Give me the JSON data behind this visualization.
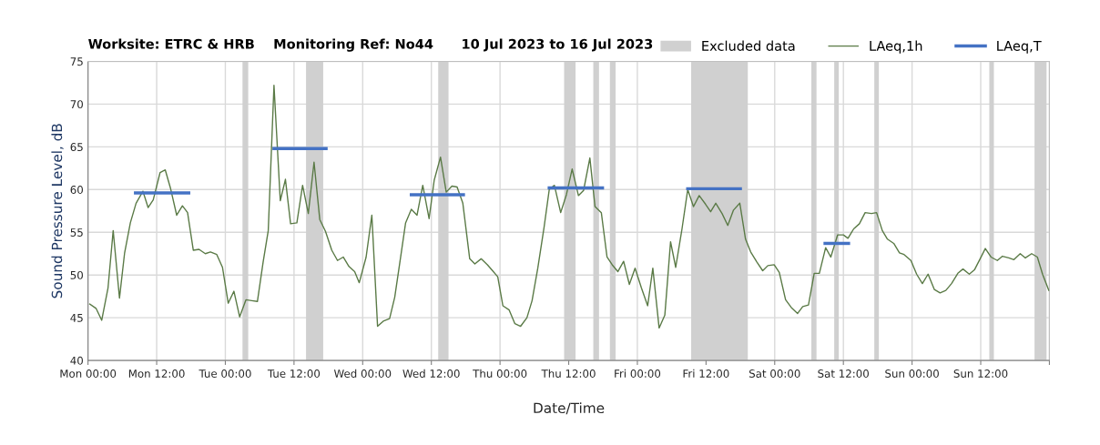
{
  "chart_data": {
    "type": "line",
    "title": "Worksite: ETRC & HRB    Monitoring Ref: No44      10 Jul 2023 to 16 Jul 2023",
    "xlabel": "Date/Time",
    "ylabel": "Sound Pressure Level, dB",
    "xlim": [
      "2023-07-10T00:00",
      "2023-07-17T00:00"
    ],
    "xticks": [
      {
        "value": "2023-07-10T00:00",
        "label": "Mon 00:00"
      },
      {
        "value": "2023-07-10T12:00",
        "label": "Mon 12:00"
      },
      {
        "value": "2023-07-11T00:00",
        "label": "Tue 00:00"
      },
      {
        "value": "2023-07-11T12:00",
        "label": "Tue 12:00"
      },
      {
        "value": "2023-07-12T00:00",
        "label": "Wed 00:00"
      },
      {
        "value": "2023-07-12T12:00",
        "label": "Wed 12:00"
      },
      {
        "value": "2023-07-13T00:00",
        "label": "Thu 00:00"
      },
      {
        "value": "2023-07-13T12:00",
        "label": "Thu 12:00"
      },
      {
        "value": "2023-07-14T00:00",
        "label": "Fri 00:00"
      },
      {
        "value": "2023-07-14T12:00",
        "label": "Fri 12:00"
      },
      {
        "value": "2023-07-15T00:00",
        "label": "Sat 00:00"
      },
      {
        "value": "2023-07-15T12:00",
        "label": "Sat 12:00"
      },
      {
        "value": "2023-07-16T00:00",
        "label": "Sun 00:00"
      },
      {
        "value": "2023-07-16T12:00",
        "label": "Sun 12:00"
      },
      {
        "value": "2023-07-17T00:00",
        "label": null
      }
    ],
    "ylim": [
      40,
      75
    ],
    "yticks": [
      40,
      45,
      50,
      55,
      60,
      65,
      70,
      75
    ],
    "grid": true,
    "legend": "top right",
    "series": [
      {
        "name": "LAeq,1h",
        "color": "#5a7a46",
        "x": [
          "2023-07-10T00:18",
          "2023-07-10T01:24",
          "2023-07-10T02:24",
          "2023-07-10T03:30",
          "2023-07-10T04:24",
          "2023-07-10T05:30",
          "2023-07-10T06:24",
          "2023-07-10T07:24",
          "2023-07-10T08:24",
          "2023-07-10T09:36",
          "2023-07-10T10:30",
          "2023-07-10T11:24",
          "2023-07-10T12:36",
          "2023-07-10T13:30",
          "2023-07-10T14:24",
          "2023-07-10T15:30",
          "2023-07-10T16:30",
          "2023-07-10T17:24",
          "2023-07-10T18:24",
          "2023-07-10T19:24",
          "2023-07-10T20:30",
          "2023-07-10T21:24",
          "2023-07-10T22:30",
          "2023-07-10T23:30",
          "2023-07-11T00:30",
          "2023-07-11T01:30",
          "2023-07-11T02:30",
          "2023-07-11T03:36",
          "2023-07-11T04:36",
          "2023-07-11T05:36",
          "2023-07-11T06:36",
          "2023-07-11T07:30",
          "2023-07-11T08:30",
          "2023-07-11T09:36",
          "2023-07-11T10:30",
          "2023-07-11T11:24",
          "2023-07-11T12:30",
          "2023-07-11T13:30",
          "2023-07-11T14:30",
          "2023-07-11T15:30",
          "2023-07-11T16:30",
          "2023-07-11T17:30",
          "2023-07-11T18:36",
          "2023-07-11T19:36",
          "2023-07-11T20:36",
          "2023-07-11T21:36",
          "2023-07-11T22:36",
          "2023-07-11T23:24",
          "2023-07-12T00:36",
          "2023-07-12T01:36",
          "2023-07-12T02:36",
          "2023-07-12T03:36",
          "2023-07-12T04:42",
          "2023-07-12T05:36",
          "2023-07-12T06:30",
          "2023-07-12T07:30",
          "2023-07-12T08:30",
          "2023-07-12T09:30",
          "2023-07-12T10:30",
          "2023-07-12T11:36",
          "2023-07-12T12:30",
          "2023-07-12T13:36",
          "2023-07-12T14:36",
          "2023-07-12T15:36",
          "2023-07-12T16:30",
          "2023-07-12T17:30",
          "2023-07-12T18:42",
          "2023-07-12T19:36",
          "2023-07-12T20:42",
          "2023-07-12T21:48",
          "2023-07-12T22:42",
          "2023-07-12T23:36",
          "2023-07-13T00:30",
          "2023-07-13T01:36",
          "2023-07-13T02:36",
          "2023-07-13T03:36",
          "2023-07-13T04:42",
          "2023-07-13T05:36",
          "2023-07-13T06:36",
          "2023-07-13T07:42",
          "2023-07-13T08:36",
          "2023-07-13T09:30",
          "2023-07-13T10:36",
          "2023-07-13T11:36",
          "2023-07-13T12:36",
          "2023-07-13T13:42",
          "2023-07-13T14:36",
          "2023-07-13T15:42",
          "2023-07-13T16:36",
          "2023-07-13T17:42",
          "2023-07-13T18:42",
          "2023-07-13T19:36",
          "2023-07-13T20:36",
          "2023-07-13T21:36",
          "2023-07-13T22:36",
          "2023-07-13T23:36",
          "2023-07-14T00:42",
          "2023-07-14T01:48",
          "2023-07-14T02:42",
          "2023-07-14T03:48",
          "2023-07-14T04:48",
          "2023-07-14T05:48",
          "2023-07-14T06:42",
          "2023-07-14T07:48",
          "2023-07-14T08:48",
          "2023-07-14T09:48",
          "2023-07-14T10:48",
          "2023-07-14T11:54",
          "2023-07-14T12:48",
          "2023-07-14T13:42",
          "2023-07-14T14:48",
          "2023-07-14T15:48",
          "2023-07-14T16:48",
          "2023-07-14T17:54",
          "2023-07-14T18:54",
          "2023-07-14T19:48",
          "2023-07-14T20:54",
          "2023-07-14T21:54",
          "2023-07-14T22:48",
          "2023-07-14T23:54",
          "2023-07-15T00:48",
          "2023-07-15T01:54",
          "2023-07-15T02:54",
          "2023-07-15T04:00",
          "2023-07-15T04:54",
          "2023-07-15T05:54",
          "2023-07-15T06:54",
          "2023-07-15T07:48",
          "2023-07-15T08:54",
          "2023-07-15T09:48",
          "2023-07-15T11:00",
          "2023-07-15T12:00",
          "2023-07-15T12:48",
          "2023-07-15T13:48",
          "2023-07-15T14:48",
          "2023-07-15T15:48",
          "2023-07-15T16:54",
          "2023-07-15T17:48",
          "2023-07-15T18:48",
          "2023-07-15T19:42",
          "2023-07-15T20:48",
          "2023-07-15T21:48",
          "2023-07-15T22:36",
          "2023-07-15T23:48",
          "2023-07-16T00:48",
          "2023-07-16T01:48",
          "2023-07-16T02:48",
          "2023-07-16T03:54",
          "2023-07-16T04:54",
          "2023-07-16T05:54",
          "2023-07-16T06:54",
          "2023-07-16T08:00",
          "2023-07-16T08:54",
          "2023-07-16T10:00",
          "2023-07-16T10:54",
          "2023-07-16T11:54",
          "2023-07-16T12:48",
          "2023-07-16T13:48",
          "2023-07-16T14:54",
          "2023-07-16T15:48",
          "2023-07-16T16:54",
          "2023-07-16T17:48",
          "2023-07-16T18:54",
          "2023-07-16T19:48",
          "2023-07-16T20:54",
          "2023-07-16T21:54",
          "2023-07-16T22:48",
          "2023-07-16T23:54"
        ],
        "values": [
          46.6,
          46.1,
          44.7,
          48.5,
          55.2,
          47.3,
          52.6,
          56.1,
          58.4,
          59.8,
          57.9,
          58.8,
          62.0,
          62.3,
          60.2,
          57.0,
          58.1,
          57.3,
          52.9,
          53.0,
          52.5,
          52.7,
          52.4,
          50.9,
          46.7,
          48.1,
          45.1,
          47.1,
          47.0,
          46.9,
          51.5,
          55.2,
          72.2,
          58.7,
          61.2,
          56.0,
          56.1,
          60.5,
          57.2,
          63.2,
          56.5,
          55.1,
          52.9,
          51.7,
          52.1,
          51.0,
          50.4,
          49.1,
          52.1,
          57.0,
          44.0,
          44.6,
          44.9,
          47.4,
          51.5,
          56.1,
          57.7,
          57.0,
          60.5,
          56.6,
          61.1,
          63.8,
          59.7,
          60.4,
          60.3,
          58.4,
          51.9,
          51.3,
          51.9,
          51.2,
          50.5,
          49.8,
          46.4,
          45.9,
          44.3,
          44.0,
          45.0,
          47.0,
          50.8,
          55.6,
          60.0,
          60.5,
          57.3,
          59.4,
          62.4,
          59.3,
          59.9,
          63.7,
          58.0,
          57.3,
          52.1,
          51.2,
          50.4,
          51.6,
          48.9,
          50.8,
          48.5,
          46.4,
          50.8,
          43.8,
          45.3,
          53.9,
          50.9,
          55.4,
          60.0,
          58.0,
          59.3,
          58.3,
          57.4,
          58.4,
          57.2,
          55.8,
          57.6,
          58.4,
          54.2,
          52.7,
          51.5,
          50.5,
          51.1,
          51.2,
          50.3,
          47.1,
          46.2,
          45.5,
          46.3,
          46.5,
          50.2,
          50.2,
          53.2,
          52.1,
          54.7,
          54.7,
          54.3,
          55.4,
          56.0,
          57.3,
          57.2,
          57.3,
          55.2,
          54.2,
          53.7,
          52.6,
          52.4,
          51.7,
          50.1,
          49.0,
          50.1,
          48.3,
          47.9,
          48.2,
          49.0,
          50.2,
          50.7,
          50.1,
          50.6,
          51.9,
          53.1,
          52.1,
          51.7,
          52.2,
          52.0,
          51.8,
          52.5,
          52.0,
          52.5,
          52.1,
          50.1,
          48.2
        ]
      },
      {
        "name": "LAeq,T",
        "color": "#4472c4",
        "x": [
          "2023-07-10T08:18",
          "2023-07-10T17:36"
        ],
        "values": [
          59.6,
          59.6
        ]
      },
      {
        "color": "#4472c4",
        "x": [
          "2023-07-11T08:30",
          "2023-07-11T17:36"
        ],
        "values": [
          64.8,
          64.8
        ]
      },
      {
        "color": "#4472c4",
        "x": [
          "2023-07-12T08:30",
          "2023-07-12T17:36"
        ],
        "values": [
          59.4,
          59.4
        ]
      },
      {
        "color": "#4472c4",
        "x": [
          "2023-07-13T08:36",
          "2023-07-13T17:54"
        ],
        "values": [
          60.2,
          60.2
        ]
      },
      {
        "color": "#4472c4",
        "x": [
          "2023-07-14T08:48",
          "2023-07-14T18:00"
        ],
        "values": [
          60.1,
          60.1
        ]
      },
      {
        "color": "#4472c4",
        "x": [
          "2023-07-15T08:48",
          "2023-07-15T12:54"
        ],
        "values": [
          53.7,
          53.7
        ]
      }
    ],
    "bands": [
      {
        "axis": "x",
        "from": "2023-07-11T03:00",
        "to": "2023-07-11T04:00",
        "label": "Excluded data",
        "color": "#d0d0d0"
      },
      {
        "axis": "x",
        "from": "2023-07-11T14:06",
        "to": "2023-07-11T17:06",
        "color": "#d0d0d0"
      },
      {
        "axis": "x",
        "from": "2023-07-12T13:12",
        "to": "2023-07-12T15:00",
        "color": "#d0d0d0"
      },
      {
        "axis": "x",
        "from": "2023-07-13T11:12",
        "to": "2023-07-13T13:12",
        "color": "#d0d0d0"
      },
      {
        "axis": "x",
        "from": "2023-07-13T16:18",
        "to": "2023-07-13T17:18",
        "color": "#d0d0d0"
      },
      {
        "axis": "x",
        "from": "2023-07-13T19:12",
        "to": "2023-07-13T20:12",
        "color": "#d0d0d0"
      },
      {
        "axis": "x",
        "from": "2023-07-14T09:24",
        "to": "2023-07-14T19:18",
        "color": "#d0d0d0"
      },
      {
        "axis": "x",
        "from": "2023-07-15T06:24",
        "to": "2023-07-15T07:18",
        "color": "#d0d0d0"
      },
      {
        "axis": "x",
        "from": "2023-07-15T10:24",
        "to": "2023-07-15T11:12",
        "color": "#d0d0d0"
      },
      {
        "axis": "x",
        "from": "2023-07-15T17:24",
        "to": "2023-07-15T18:12",
        "color": "#d0d0d0"
      },
      {
        "axis": "x",
        "from": "2023-07-16T13:30",
        "to": "2023-07-16T14:18",
        "color": "#d0d0d0"
      },
      {
        "axis": "x",
        "from": "2023-07-16T21:24",
        "to": "2023-07-16T23:30",
        "color": "#d0d0d0"
      }
    ]
  }
}
